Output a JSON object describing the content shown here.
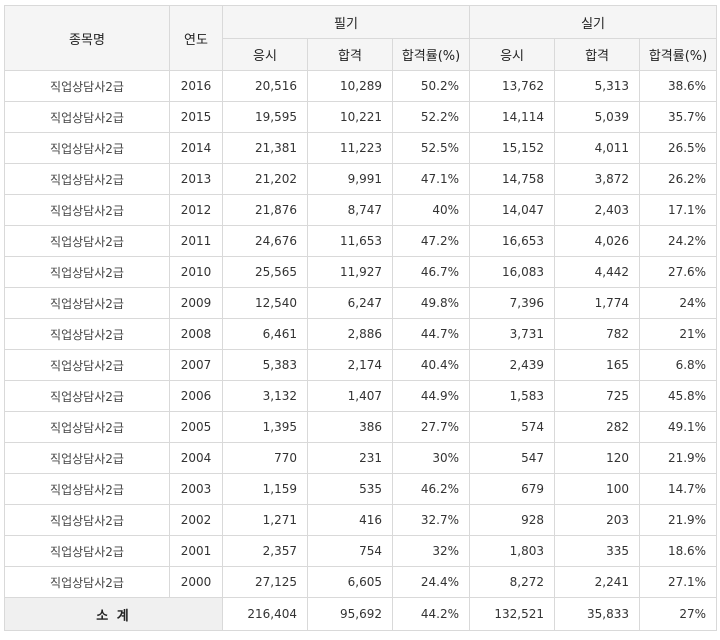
{
  "header": {
    "col_name": "종목명",
    "col_year": "연도",
    "group_written": "필기",
    "group_practical": "실기",
    "sub_applicants": "응시",
    "sub_passed": "합격",
    "sub_rate": "합격률(%)"
  },
  "rows": [
    {
      "name": "직업상담사2급",
      "year": "2016",
      "w_app": "20,516",
      "w_pass": "10,289",
      "w_rate": "50.2%",
      "p_app": "13,762",
      "p_pass": "5,313",
      "p_rate": "38.6%"
    },
    {
      "name": "직업상담사2급",
      "year": "2015",
      "w_app": "19,595",
      "w_pass": "10,221",
      "w_rate": "52.2%",
      "p_app": "14,114",
      "p_pass": "5,039",
      "p_rate": "35.7%"
    },
    {
      "name": "직업상담사2급",
      "year": "2014",
      "w_app": "21,381",
      "w_pass": "11,223",
      "w_rate": "52.5%",
      "p_app": "15,152",
      "p_pass": "4,011",
      "p_rate": "26.5%"
    },
    {
      "name": "직업상담사2급",
      "year": "2013",
      "w_app": "21,202",
      "w_pass": "9,991",
      "w_rate": "47.1%",
      "p_app": "14,758",
      "p_pass": "3,872",
      "p_rate": "26.2%"
    },
    {
      "name": "직업상담사2급",
      "year": "2012",
      "w_app": "21,876",
      "w_pass": "8,747",
      "w_rate": "40%",
      "p_app": "14,047",
      "p_pass": "2,403",
      "p_rate": "17.1%"
    },
    {
      "name": "직업상담사2급",
      "year": "2011",
      "w_app": "24,676",
      "w_pass": "11,653",
      "w_rate": "47.2%",
      "p_app": "16,653",
      "p_pass": "4,026",
      "p_rate": "24.2%"
    },
    {
      "name": "직업상담사2급",
      "year": "2010",
      "w_app": "25,565",
      "w_pass": "11,927",
      "w_rate": "46.7%",
      "p_app": "16,083",
      "p_pass": "4,442",
      "p_rate": "27.6%"
    },
    {
      "name": "직업상담사2급",
      "year": "2009",
      "w_app": "12,540",
      "w_pass": "6,247",
      "w_rate": "49.8%",
      "p_app": "7,396",
      "p_pass": "1,774",
      "p_rate": "24%"
    },
    {
      "name": "직업상담사2급",
      "year": "2008",
      "w_app": "6,461",
      "w_pass": "2,886",
      "w_rate": "44.7%",
      "p_app": "3,731",
      "p_pass": "782",
      "p_rate": "21%"
    },
    {
      "name": "직업상담사2급",
      "year": "2007",
      "w_app": "5,383",
      "w_pass": "2,174",
      "w_rate": "40.4%",
      "p_app": "2,439",
      "p_pass": "165",
      "p_rate": "6.8%"
    },
    {
      "name": "직업상담사2급",
      "year": "2006",
      "w_app": "3,132",
      "w_pass": "1,407",
      "w_rate": "44.9%",
      "p_app": "1,583",
      "p_pass": "725",
      "p_rate": "45.8%"
    },
    {
      "name": "직업상담사2급",
      "year": "2005",
      "w_app": "1,395",
      "w_pass": "386",
      "w_rate": "27.7%",
      "p_app": "574",
      "p_pass": "282",
      "p_rate": "49.1%"
    },
    {
      "name": "직업상담사2급",
      "year": "2004",
      "w_app": "770",
      "w_pass": "231",
      "w_rate": "30%",
      "p_app": "547",
      "p_pass": "120",
      "p_rate": "21.9%"
    },
    {
      "name": "직업상담사2급",
      "year": "2003",
      "w_app": "1,159",
      "w_pass": "535",
      "w_rate": "46.2%",
      "p_app": "679",
      "p_pass": "100",
      "p_rate": "14.7%"
    },
    {
      "name": "직업상담사2급",
      "year": "2002",
      "w_app": "1,271",
      "w_pass": "416",
      "w_rate": "32.7%",
      "p_app": "928",
      "p_pass": "203",
      "p_rate": "21.9%"
    },
    {
      "name": "직업상담사2급",
      "year": "2001",
      "w_app": "2,357",
      "w_pass": "754",
      "w_rate": "32%",
      "p_app": "1,803",
      "p_pass": "335",
      "p_rate": "18.6%"
    },
    {
      "name": "직업상담사2급",
      "year": "2000",
      "w_app": "27,125",
      "w_pass": "6,605",
      "w_rate": "24.4%",
      "p_app": "8,272",
      "p_pass": "2,241",
      "p_rate": "27.1%"
    }
  ],
  "total": {
    "label": "소 계",
    "w_app": "216,404",
    "w_pass": "95,692",
    "w_rate": "44.2%",
    "p_app": "132,521",
    "p_pass": "35,833",
    "p_rate": "27%"
  }
}
